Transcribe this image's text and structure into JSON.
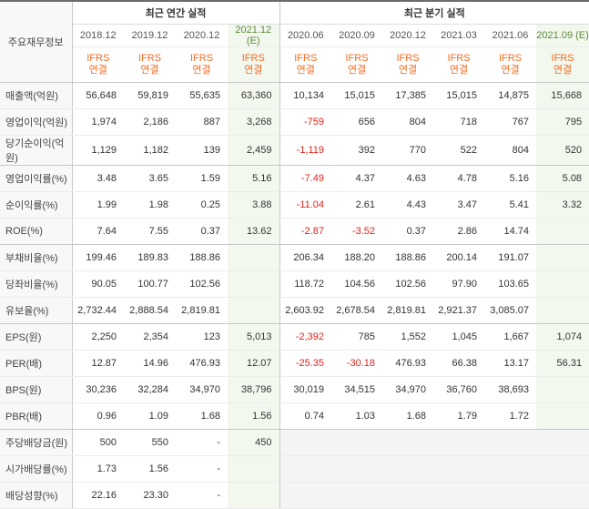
{
  "header": {
    "row_label": "주요재무정보",
    "annual_title": "최근 연간 실적",
    "quarter_title": "최근 분기 실적",
    "annual_periods": [
      "2018.12",
      "2019.12",
      "2020.12",
      "2021.12 (E)"
    ],
    "quarter_periods": [
      "2020.06",
      "2020.09",
      "2020.12",
      "2021.03",
      "2021.06",
      "2021.09 (E)"
    ],
    "ifrs_top": "IFRS",
    "ifrs_bottom": "연결"
  },
  "rows": [
    {
      "label": "매출액(억원)",
      "values": [
        "56,648",
        "59,819",
        "55,635",
        "63,360",
        "10,134",
        "15,015",
        "17,385",
        "15,015",
        "14,875",
        "15,668"
      ]
    },
    {
      "label": "영업이익(억원)",
      "values": [
        "1,974",
        "2,186",
        "887",
        "3,268",
        "-759",
        "656",
        "804",
        "718",
        "767",
        "795"
      ]
    },
    {
      "label": "당기순이익(억원)",
      "values": [
        "1,129",
        "1,182",
        "139",
        "2,459",
        "-1,119",
        "392",
        "770",
        "522",
        "804",
        "520"
      ]
    },
    {
      "label": "영업이익률(%)",
      "values": [
        "3.48",
        "3.65",
        "1.59",
        "5.16",
        "-7.49",
        "4.37",
        "4.63",
        "4.78",
        "5.16",
        "5.08"
      ]
    },
    {
      "label": "순이익률(%)",
      "values": [
        "1.99",
        "1.98",
        "0.25",
        "3.88",
        "-11.04",
        "2.61",
        "4.43",
        "3.47",
        "5.41",
        "3.32"
      ]
    },
    {
      "label": "ROE(%)",
      "values": [
        "7.64",
        "7.55",
        "0.37",
        "13.62",
        "-2.87",
        "-3.52",
        "0.37",
        "2.86",
        "14.74",
        ""
      ]
    },
    {
      "label": "부채비율(%)",
      "values": [
        "199.46",
        "189.83",
        "188.86",
        "",
        "206.34",
        "188.20",
        "188.86",
        "200.14",
        "191.07",
        ""
      ]
    },
    {
      "label": "당좌비율(%)",
      "values": [
        "90.05",
        "100.77",
        "102.56",
        "",
        "118.72",
        "104.56",
        "102.56",
        "97.90",
        "103.65",
        ""
      ]
    },
    {
      "label": "유보율(%)",
      "values": [
        "2,732.44",
        "2,888.54",
        "2,819.81",
        "",
        "2,603.92",
        "2,678.54",
        "2,819.81",
        "2,921.37",
        "3,085.07",
        ""
      ]
    },
    {
      "label": "EPS(원)",
      "values": [
        "2,250",
        "2,354",
        "123",
        "5,013",
        "-2,392",
        "785",
        "1,552",
        "1,045",
        "1,667",
        "1,074"
      ]
    },
    {
      "label": "PER(배)",
      "values": [
        "12.87",
        "14.96",
        "476.93",
        "12.07",
        "-25.35",
        "-30.18",
        "476.93",
        "66.38",
        "13.17",
        "56.31"
      ]
    },
    {
      "label": "BPS(원)",
      "values": [
        "30,236",
        "32,284",
        "34,970",
        "38,796",
        "30,019",
        "34,515",
        "34,970",
        "36,760",
        "38,693",
        ""
      ]
    },
    {
      "label": "PBR(배)",
      "values": [
        "0.96",
        "1.09",
        "1.68",
        "1.56",
        "0.74",
        "1.03",
        "1.68",
        "1.79",
        "1.72",
        ""
      ]
    },
    {
      "label": "주당배당금(원)",
      "values": [
        "500",
        "550",
        "-",
        "450",
        "",
        "",
        "",
        "",
        "",
        ""
      ]
    },
    {
      "label": "시가배당률(%)",
      "values": [
        "1.73",
        "1.56",
        "-",
        "",
        "",
        "",
        "",
        "",
        "",
        ""
      ]
    },
    {
      "label": "배당성향(%)",
      "values": [
        "22.16",
        "23.30",
        "-",
        "",
        "",
        "",
        "",
        "",
        "",
        ""
      ]
    }
  ]
}
